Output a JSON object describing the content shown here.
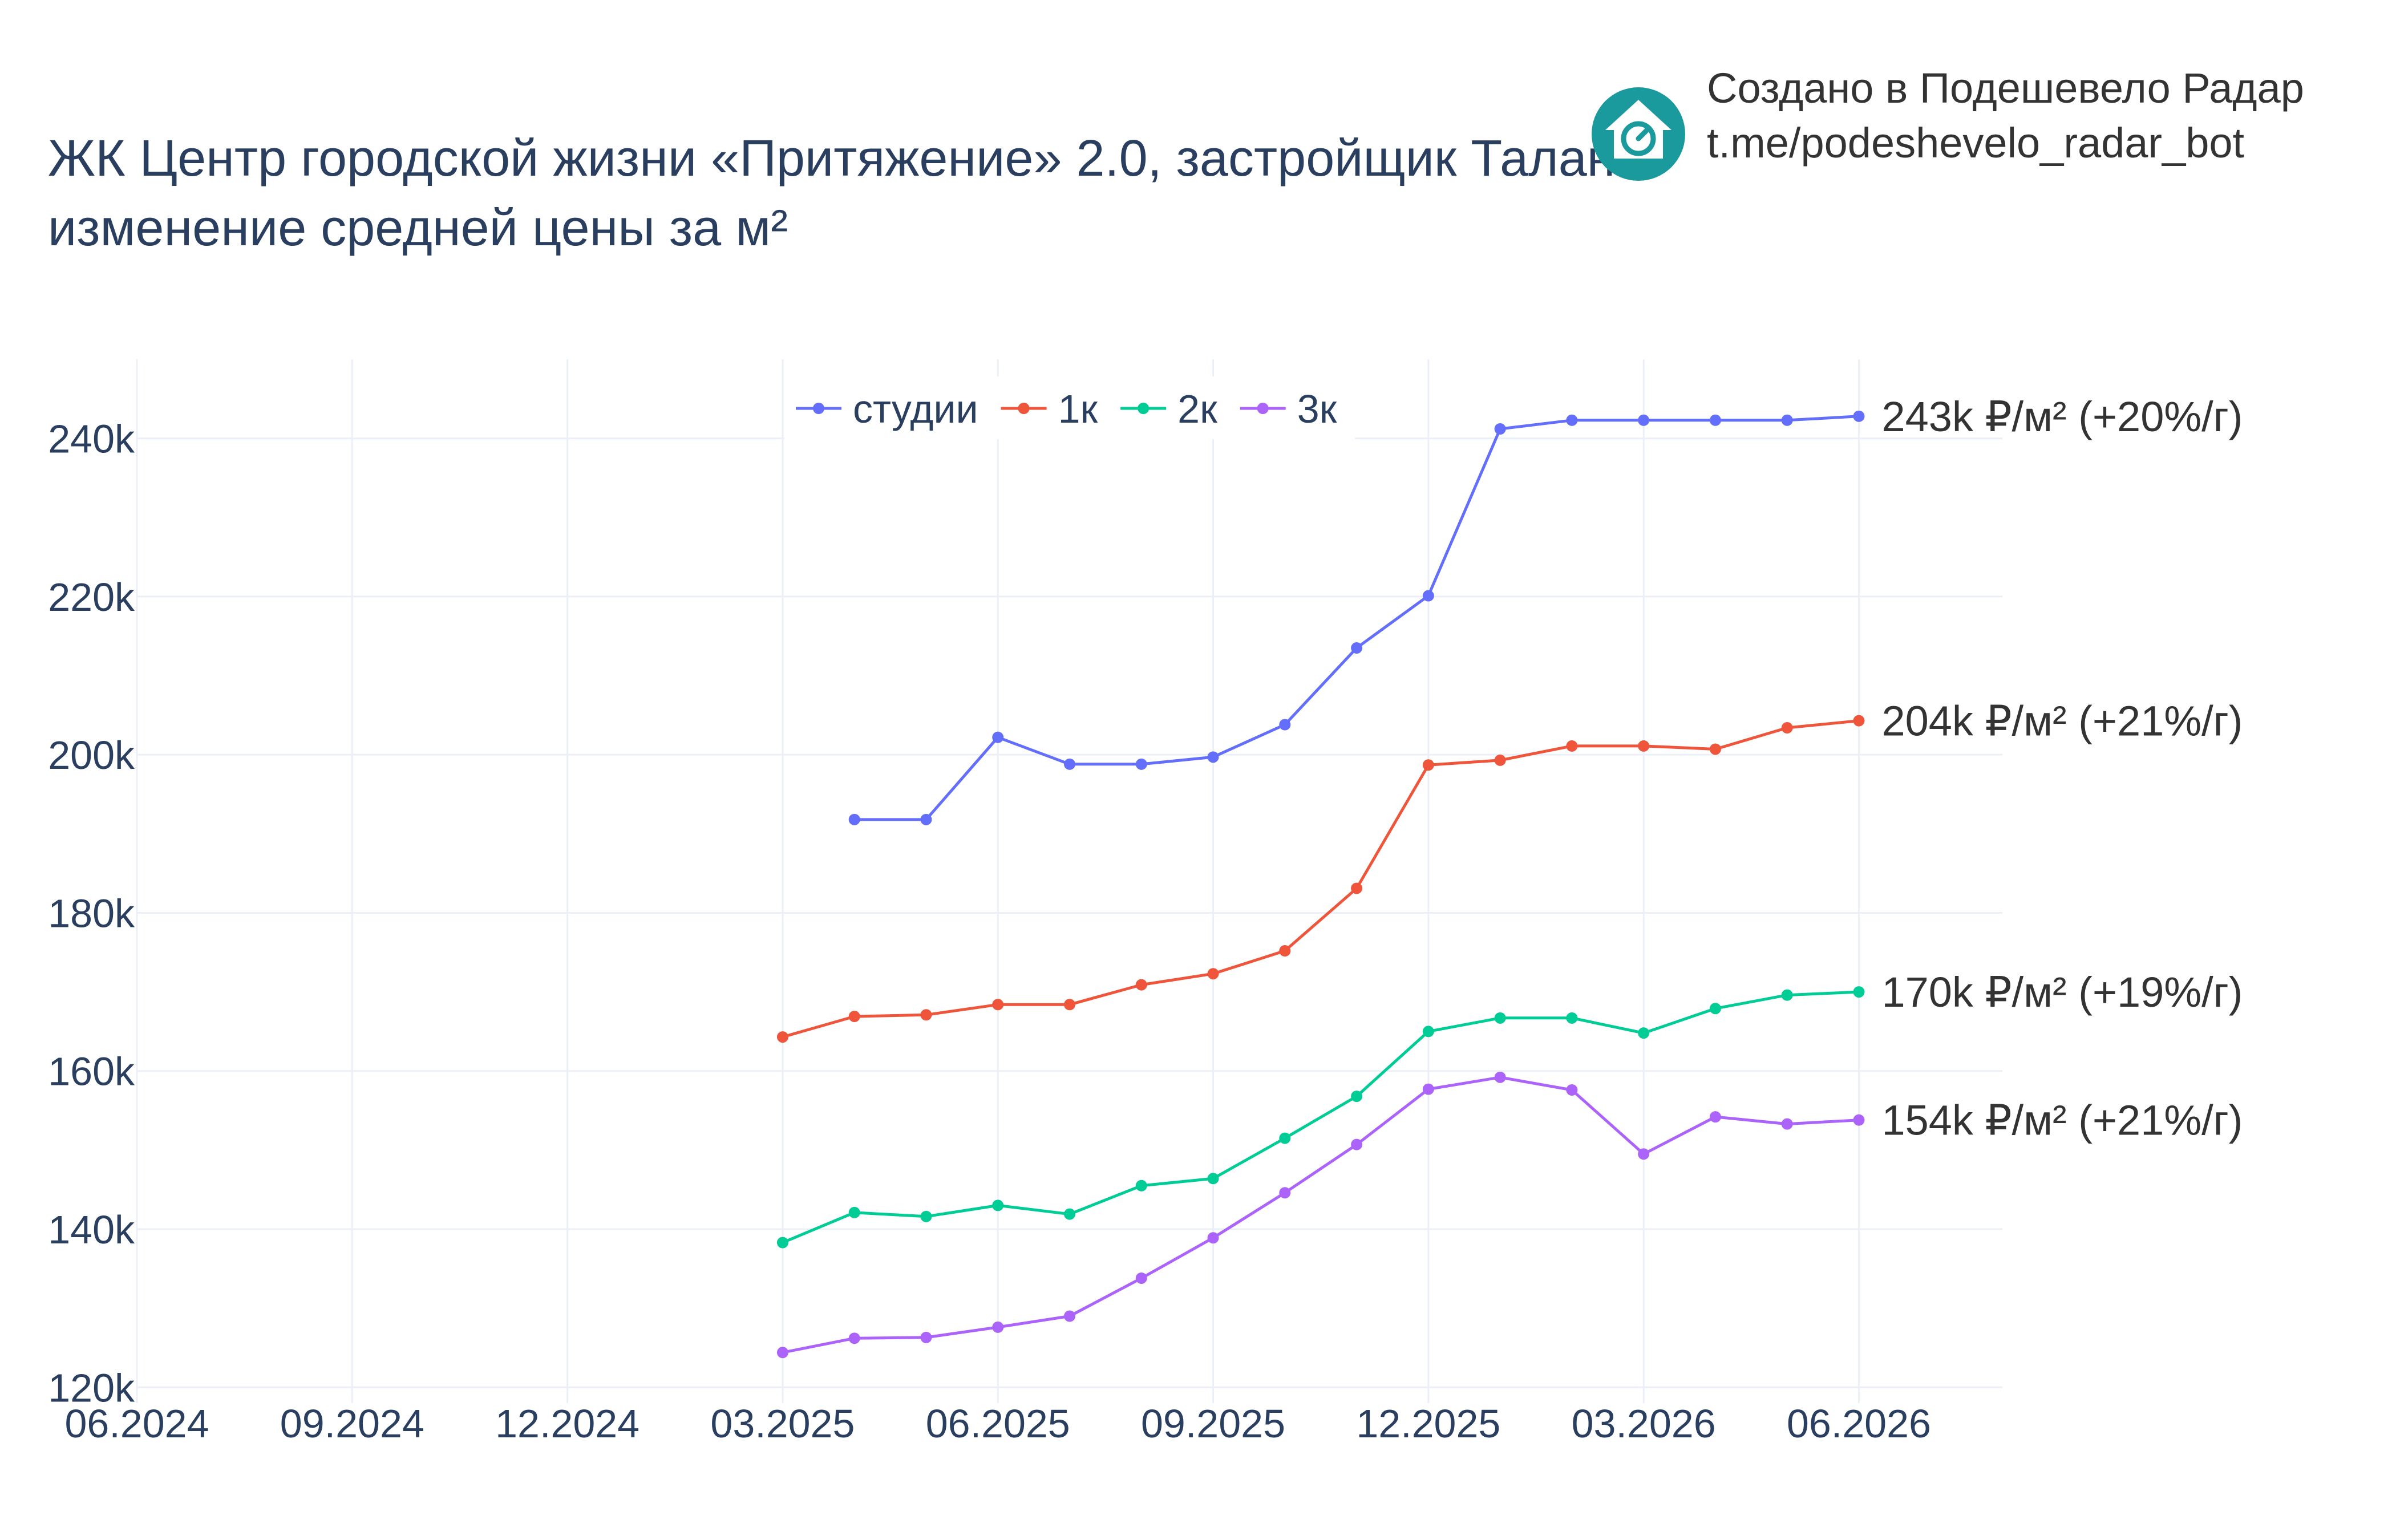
{
  "title": {
    "line1": "ЖК Центр городской жизни «Притяжение» 2.0, застройщик Талан",
    "line2": "изменение средней цены за м²"
  },
  "branding": {
    "line1": "Создано в Подешевело Радар",
    "line2": "t.me/podeshevelo_radar_bot",
    "logo_icon": "house-logo-icon",
    "logo_color": "#1a9a9c"
  },
  "chart_data": {
    "type": "line",
    "x": [
      "2025-03",
      "2025-04",
      "2025-05",
      "2025-06",
      "2025-07",
      "2025-08",
      "2025-09",
      "2025-10",
      "2025-11",
      "2025-12",
      "2026-01",
      "2026-02",
      "2026-03",
      "2026-04",
      "2026-05",
      "2026-06"
    ],
    "x_tick_labels": [
      "06.2024",
      "09.2024",
      "12.2024",
      "03.2025",
      "06.2025",
      "09.2025",
      "12.2025",
      "03.2026",
      "06.2026"
    ],
    "x_range": [
      "2024-06",
      "2026-08"
    ],
    "y_tick_labels": [
      "120k",
      "140k",
      "160k",
      "180k",
      "200k",
      "220k",
      "240k"
    ],
    "ylim": [
      118000,
      250000
    ],
    "grid": true,
    "legend_position": "top-center",
    "series": [
      {
        "name": "студии",
        "color": "#636efa",
        "values": [
          null,
          191800,
          191800,
          202200,
          198800,
          198800,
          199700,
          203800,
          213500,
          220100,
          241200,
          242300,
          242300,
          242300,
          242300,
          242800
        ],
        "end_label": "243k ₽/м² (+20%/г)"
      },
      {
        "name": "1к",
        "color": "#ef553b",
        "values": [
          164300,
          166900,
          167100,
          168400,
          168400,
          170900,
          172300,
          175200,
          183100,
          198700,
          199300,
          201100,
          201100,
          200700,
          203400,
          204300
        ],
        "end_label": "204k ₽/м² (+21%/г)"
      },
      {
        "name": "2к",
        "color": "#00cc96",
        "values": [
          138300,
          142100,
          141600,
          143000,
          141900,
          145500,
          146400,
          151500,
          156800,
          165000,
          166700,
          166700,
          164800,
          167900,
          169600,
          170000
        ],
        "end_label": "170k ₽/м² (+19%/г)"
      },
      {
        "name": "3к",
        "color": "#ab63fa",
        "values": [
          124400,
          126200,
          126300,
          127600,
          129000,
          133800,
          138900,
          144600,
          150700,
          157700,
          159200,
          157600,
          149500,
          154200,
          153300,
          153800
        ],
        "end_label": "154k ₽/м² (+21%/г)"
      }
    ]
  }
}
